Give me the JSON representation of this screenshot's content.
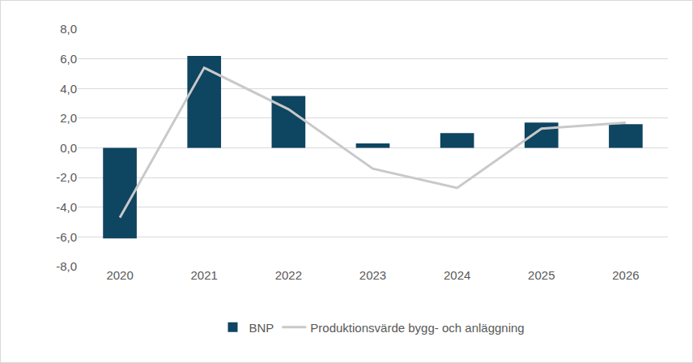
{
  "chart_data": {
    "type": "bar",
    "categories": [
      "2020",
      "2021",
      "2022",
      "2023",
      "2024",
      "2025",
      "2026"
    ],
    "series": [
      {
        "name": "BNP",
        "type": "bar",
        "color": "#0e4561",
        "values": [
          -6.1,
          6.2,
          3.5,
          0.3,
          1.0,
          1.7,
          1.6
        ]
      },
      {
        "name": "Produktionsvärde bygg- och anläggning",
        "type": "line",
        "color": "#c9c9c9",
        "values": [
          -4.7,
          5.4,
          2.6,
          -1.4,
          -2.7,
          1.3,
          1.7
        ]
      }
    ],
    "ylim": [
      -8,
      8
    ],
    "yticks": [
      {
        "value": -8,
        "label": "-8,0"
      },
      {
        "value": -6,
        "label": "-6,0"
      },
      {
        "value": -4,
        "label": "-4,0"
      },
      {
        "value": -2,
        "label": "-2,0"
      },
      {
        "value": 0,
        "label": "0,0"
      },
      {
        "value": 2,
        "label": "2,0"
      },
      {
        "value": 4,
        "label": "4,0"
      },
      {
        "value": 6,
        "label": "6,0"
      },
      {
        "value": 8,
        "label": "8,0"
      }
    ],
    "grid": true,
    "legend": "bottom"
  }
}
